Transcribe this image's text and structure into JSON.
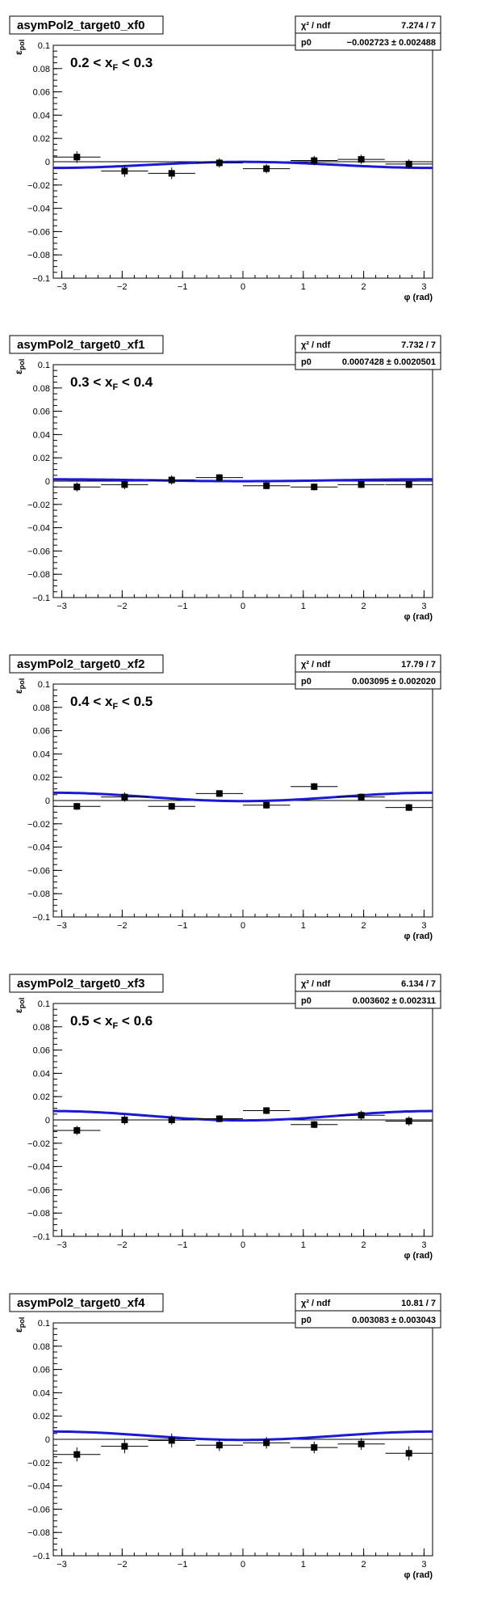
{
  "chart_data": [
    {
      "type": "scatter",
      "title": "asymPol2_target0_xf0",
      "annotation": "0.2 < x_F < 0.3",
      "annotation_parts": {
        "lead": "0.2 < x",
        "sub": "F",
        "trail": " < 0.3"
      },
      "xlabel": "φ (rad)",
      "ylabel": "ε_pol",
      "ylabel_parts": {
        "main": "ε",
        "sub": "pol"
      },
      "xlim": [
        -3.1416,
        3.1416
      ],
      "ylim": [
        -0.1,
        0.1
      ],
      "x_ticks": [
        "−3",
        "−2",
        "−1",
        "0",
        "1",
        "2",
        "3"
      ],
      "y_ticks": [
        "−0.1",
        "−0.08",
        "−0.06",
        "−0.04",
        "−0.02",
        "0",
        "0.02",
        "0.04",
        "0.06",
        "0.08",
        "0.1"
      ],
      "stats": {
        "chi2_label": "χ² / ndf",
        "chi2": "7.274 / 7",
        "p0_label": "p0",
        "p0": "−0.002723 ± 0.002488"
      },
      "fit": {
        "p0": -0.002723,
        "amp": 0.0026,
        "shape": "cos"
      },
      "points": [
        {
          "x": -2.75,
          "y": 0.004,
          "xerr": 0.39,
          "yerr": 0.005
        },
        {
          "x": -1.96,
          "y": -0.008,
          "xerr": 0.39,
          "yerr": 0.005
        },
        {
          "x": -1.18,
          "y": -0.01,
          "xerr": 0.39,
          "yerr": 0.005
        },
        {
          "x": -0.39,
          "y": -0.001,
          "xerr": 0.39,
          "yerr": 0.004
        },
        {
          "x": 0.39,
          "y": -0.006,
          "xerr": 0.39,
          "yerr": 0.004
        },
        {
          "x": 1.18,
          "y": 0.001,
          "xerr": 0.39,
          "yerr": 0.004
        },
        {
          "x": 1.96,
          "y": 0.002,
          "xerr": 0.39,
          "yerr": 0.004
        },
        {
          "x": 2.75,
          "y": -0.002,
          "xerr": 0.39,
          "yerr": 0.004
        }
      ]
    },
    {
      "type": "scatter",
      "title": "asymPol2_target0_xf1",
      "annotation": "0.3 < x_F < 0.4",
      "annotation_parts": {
        "lead": "0.3 < x",
        "sub": "F",
        "trail": " < 0.4"
      },
      "xlabel": "φ (rad)",
      "ylabel": "ε_pol",
      "ylabel_parts": {
        "main": "ε",
        "sub": "pol"
      },
      "xlim": [
        -3.1416,
        3.1416
      ],
      "ylim": [
        -0.1,
        0.1
      ],
      "x_ticks": [
        "−3",
        "−2",
        "−1",
        "0",
        "1",
        "2",
        "3"
      ],
      "y_ticks": [
        "−0.1",
        "−0.08",
        "−0.06",
        "−0.04",
        "−0.02",
        "0",
        "0.02",
        "0.04",
        "0.06",
        "0.08",
        "0.1"
      ],
      "stats": {
        "chi2_label": "χ² / ndf",
        "chi2": "7.732 / 7",
        "p0_label": "p0",
        "p0": "0.0007428 ± 0.0020501"
      },
      "fit": {
        "p0": 0.0007428,
        "amp": 0.0008,
        "shape": "cos"
      },
      "points": [
        {
          "x": -2.75,
          "y": -0.005,
          "xerr": 0.39,
          "yerr": 0.004
        },
        {
          "x": -1.96,
          "y": -0.003,
          "xerr": 0.39,
          "yerr": 0.004
        },
        {
          "x": -1.18,
          "y": 0.001,
          "xerr": 0.39,
          "yerr": 0.004
        },
        {
          "x": -0.39,
          "y": 0.003,
          "xerr": 0.39,
          "yerr": 0.003
        },
        {
          "x": 0.39,
          "y": -0.004,
          "xerr": 0.39,
          "yerr": 0.003
        },
        {
          "x": 1.18,
          "y": -0.005,
          "xerr": 0.39,
          "yerr": 0.003
        },
        {
          "x": 1.96,
          "y": -0.003,
          "xerr": 0.39,
          "yerr": 0.003
        },
        {
          "x": 2.75,
          "y": -0.003,
          "xerr": 0.39,
          "yerr": 0.003
        }
      ]
    },
    {
      "type": "scatter",
      "title": "asymPol2_target0_xf2",
      "annotation": "0.4 < x_F < 0.5",
      "annotation_parts": {
        "lead": "0.4 < x",
        "sub": "F",
        "trail": " < 0.5"
      },
      "xlabel": "φ (rad)",
      "ylabel": "ε_pol",
      "ylabel_parts": {
        "main": "ε",
        "sub": "pol"
      },
      "xlim": [
        -3.1416,
        3.1416
      ],
      "ylim": [
        -0.1,
        0.1
      ],
      "x_ticks": [
        "−3",
        "−2",
        "−1",
        "0",
        "1",
        "2",
        "3"
      ],
      "y_ticks": [
        "−0.1",
        "−0.08",
        "−0.06",
        "−0.04",
        "−0.02",
        "0",
        "0.02",
        "0.04",
        "0.06",
        "0.08",
        "0.1"
      ],
      "stats": {
        "chi2_label": "χ² / ndf",
        "chi2": "17.79 / 7",
        "p0_label": "p0",
        "p0": "0.003095 ± 0.002020"
      },
      "fit": {
        "p0": 0.003095,
        "amp": 0.0036,
        "shape": "cos"
      },
      "points": [
        {
          "x": -2.75,
          "y": -0.005,
          "xerr": 0.39,
          "yerr": 0.003
        },
        {
          "x": -1.96,
          "y": 0.003,
          "xerr": 0.39,
          "yerr": 0.004
        },
        {
          "x": -1.18,
          "y": -0.005,
          "xerr": 0.39,
          "yerr": 0.003
        },
        {
          "x": -0.39,
          "y": 0.006,
          "xerr": 0.39,
          "yerr": 0.003
        },
        {
          "x": 0.39,
          "y": -0.004,
          "xerr": 0.39,
          "yerr": 0.003
        },
        {
          "x": 1.18,
          "y": 0.012,
          "xerr": 0.39,
          "yerr": 0.003
        },
        {
          "x": 1.96,
          "y": 0.003,
          "xerr": 0.39,
          "yerr": 0.003
        },
        {
          "x": 2.75,
          "y": -0.006,
          "xerr": 0.39,
          "yerr": 0.003
        }
      ]
    },
    {
      "type": "scatter",
      "title": "asymPol2_target0_xf3",
      "annotation": "0.5 < x_F < 0.6",
      "annotation_parts": {
        "lead": "0.5 < x",
        "sub": "F",
        "trail": " < 0.6"
      },
      "xlabel": "φ (rad)",
      "ylabel": "ε_pol",
      "ylabel_parts": {
        "main": "ε",
        "sub": "pol"
      },
      "xlim": [
        -3.1416,
        3.1416
      ],
      "ylim": [
        -0.1,
        0.1
      ],
      "x_ticks": [
        "−3",
        "−2",
        "−1",
        "0",
        "1",
        "2",
        "3"
      ],
      "y_ticks": [
        "−0.1",
        "−0.08",
        "−0.06",
        "−0.04",
        "−0.02",
        "0",
        "0.02",
        "0.04",
        "0.06",
        "0.08",
        "0.1"
      ],
      "stats": {
        "chi2_label": "χ² / ndf",
        "chi2": "6.134 / 7",
        "p0_label": "p0",
        "p0": "0.003602 ± 0.002311"
      },
      "fit": {
        "p0": 0.003602,
        "amp": 0.004,
        "shape": "cos"
      },
      "points": [
        {
          "x": -2.75,
          "y": -0.009,
          "xerr": 0.39,
          "yerr": 0.004
        },
        {
          "x": -1.96,
          "y": 0.0,
          "xerr": 0.39,
          "yerr": 0.004
        },
        {
          "x": -1.18,
          "y": 0.0,
          "xerr": 0.39,
          "yerr": 0.004
        },
        {
          "x": -0.39,
          "y": 0.001,
          "xerr": 0.39,
          "yerr": 0.003
        },
        {
          "x": 0.39,
          "y": 0.008,
          "xerr": 0.39,
          "yerr": 0.003
        },
        {
          "x": 1.18,
          "y": -0.004,
          "xerr": 0.39,
          "yerr": 0.003
        },
        {
          "x": 1.96,
          "y": 0.004,
          "xerr": 0.39,
          "yerr": 0.004
        },
        {
          "x": 2.75,
          "y": -0.001,
          "xerr": 0.39,
          "yerr": 0.004
        }
      ]
    },
    {
      "type": "scatter",
      "title": "asymPol2_target0_xf4",
      "annotation": "",
      "annotation_parts": {
        "lead": "",
        "sub": "",
        "trail": ""
      },
      "xlabel": "φ (rad)",
      "ylabel": "ε_pol",
      "ylabel_parts": {
        "main": "ε",
        "sub": "pol"
      },
      "xlim": [
        -3.1416,
        3.1416
      ],
      "ylim": [
        -0.1,
        0.1
      ],
      "x_ticks": [
        "−3",
        "−2",
        "−1",
        "0",
        "1",
        "2",
        "3"
      ],
      "y_ticks": [
        "−0.1",
        "−0.08",
        "−0.06",
        "−0.04",
        "−0.02",
        "0",
        "0.02",
        "0.04",
        "0.06",
        "0.08",
        "0.1"
      ],
      "stats": {
        "chi2_label": "χ² / ndf",
        "chi2": "10.81 / 7",
        "p0_label": "p0",
        "p0": "0.003083 ± 0.003043"
      },
      "fit": {
        "p0": 0.003083,
        "amp": 0.0036,
        "shape": "cos"
      },
      "points": [
        {
          "x": -2.75,
          "y": -0.013,
          "xerr": 0.39,
          "yerr": 0.006
        },
        {
          "x": -1.96,
          "y": -0.006,
          "xerr": 0.39,
          "yerr": 0.006
        },
        {
          "x": -1.18,
          "y": -0.001,
          "xerr": 0.39,
          "yerr": 0.006
        },
        {
          "x": -0.39,
          "y": -0.005,
          "xerr": 0.39,
          "yerr": 0.005
        },
        {
          "x": 0.39,
          "y": -0.003,
          "xerr": 0.39,
          "yerr": 0.005
        },
        {
          "x": 1.18,
          "y": -0.007,
          "xerr": 0.39,
          "yerr": 0.005
        },
        {
          "x": 1.96,
          "y": -0.004,
          "xerr": 0.39,
          "yerr": 0.005
        },
        {
          "x": 2.75,
          "y": -0.012,
          "xerr": 0.39,
          "yerr": 0.006
        }
      ]
    }
  ]
}
